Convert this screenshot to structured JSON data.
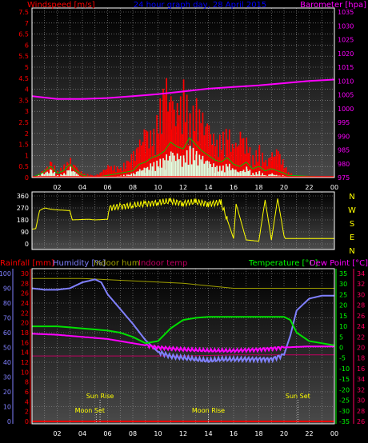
{
  "header": {
    "windspeed": "Windspeed [m/s]",
    "title": "24 hour graph day, 28 April 2015",
    "barometer": "Barometer [hpa]"
  },
  "bottom_header": {
    "rainfall": "Rainfall [mm]",
    "humidity": "Humidity [%]",
    "indoor_hum": "Indoor hum",
    "indoor_temp": "Indoor temp",
    "temperature": "Temperature [°C]",
    "dew_point": "Dew Point [°C]"
  },
  "direction_labels": [
    "N",
    "W",
    "S",
    "E",
    "N"
  ],
  "annotations": {
    "sun_rise": "Sun Rise",
    "moon_set": "Moon Set",
    "moon_rise": "Moon Rise",
    "sun_set": "Sun Set"
  },
  "colors": {
    "wind_gust": "#ff0000",
    "wind_avg": "#00c000",
    "wind_bars": "#e0ffe0",
    "barometer": "#ff00ff",
    "direction": "#ffff00",
    "humidity": "#8080ff",
    "temperature": "#00e000",
    "dew_point": "#ff00ff",
    "indoor_temp": "#c00060",
    "indoor_hum": "#a0a000",
    "rain": "#ff0000",
    "left_axis_top": "#ff0000",
    "left_axis_hum": "#8080ff",
    "right_axis_temp": "#00ff00",
    "right_axis_dew": "#ff0060"
  },
  "chart_data": [
    {
      "type": "bar",
      "name": "wind_barometer",
      "x_ticks": [
        "02",
        "04",
        "06",
        "08",
        "10",
        "12",
        "14",
        "16",
        "18",
        "20",
        "22",
        "00"
      ],
      "wind_ticks": [
        "0",
        "0.5",
        "1",
        "1.5",
        "2",
        "2.5",
        "3",
        "3.5",
        "4",
        "4.5",
        "5",
        "5.5",
        "6",
        "6.5",
        "7",
        "7.5"
      ],
      "wind_ylim": [
        0,
        7.5
      ],
      "baro_ticks": [
        "975",
        "980",
        "985",
        "990",
        "995",
        "1000",
        "1005",
        "1010",
        "1015",
        "1020",
        "1025",
        "1030",
        "1035"
      ],
      "baro_ylim": [
        975,
        1035
      ],
      "baro_series": {
        "x": [
          0,
          2,
          4,
          6,
          8,
          10,
          12,
          14,
          16,
          18,
          20,
          22,
          24
        ],
        "y": [
          1004.5,
          1003.5,
          1003.5,
          1003.8,
          1004.5,
          1005.2,
          1006.2,
          1007.2,
          1007.8,
          1008.4,
          1009.2,
          1010.0,
          1010.5
        ]
      },
      "gust_envelope": {
        "x": [
          0,
          0.8,
          1.5,
          2.0,
          2.5,
          3.0,
          3.5,
          4.0,
          5.0,
          5.5,
          6.0,
          7.0,
          8.0,
          8.5,
          9.0,
          9.5,
          10.0,
          10.5,
          11.0,
          11.5,
          12.0,
          12.5,
          13.0,
          13.5,
          14.0,
          14.5,
          15.0,
          15.5,
          16.0,
          16.5,
          17.0,
          17.5,
          18.0,
          18.5,
          19.0,
          19.5,
          20.0,
          20.3,
          21,
          24
        ],
        "y": [
          0,
          0.3,
          0.8,
          0.3,
          0.6,
          0.9,
          0.5,
          0.2,
          0.1,
          0.3,
          0.6,
          0.5,
          1.2,
          1.8,
          2.5,
          2.0,
          3.2,
          4.8,
          4.0,
          3.4,
          4.5,
          3.0,
          3.6,
          3.0,
          2.6,
          1.8,
          2.0,
          2.4,
          1.5,
          2.2,
          1.8,
          1.0,
          1.5,
          0.8,
          1.2,
          1.4,
          0.6,
          0.3,
          0,
          0
        ]
      },
      "avg_series": {
        "x": [
          0,
          0.8,
          1.5,
          2.0,
          2.5,
          3.0,
          3.5,
          4.0,
          5.0,
          6.0,
          7.0,
          8.0,
          8.5,
          9.0,
          9.5,
          10.0,
          10.5,
          11.0,
          11.5,
          12.0,
          12.5,
          13.0,
          13.5,
          14.0,
          14.5,
          15.0,
          15.5,
          16.0,
          16.5,
          17.0,
          17.5,
          18.0,
          18.5,
          19.0,
          19.5,
          20.0,
          20.3,
          24
        ],
        "y": [
          0,
          0.2,
          0.5,
          0.2,
          0.3,
          0.6,
          0.3,
          0.1,
          0,
          0.1,
          0.2,
          0.3,
          0.6,
          0.7,
          0.9,
          1.0,
          1.2,
          1.6,
          1.4,
          1.3,
          1.8,
          1.5,
          1.2,
          1.0,
          0.8,
          0.7,
          0.9,
          0.6,
          0.5,
          0.7,
          0.4,
          0.5,
          0.3,
          0.4,
          0.3,
          0.2,
          0.1,
          0
        ]
      },
      "avg_bars": {
        "x": [
          0,
          0.8,
          1.5,
          2.0,
          2.5,
          3.0,
          3.5,
          4.0,
          5.0,
          6.0,
          7.0,
          8.0,
          8.5,
          9.0,
          9.5,
          10.0,
          10.5,
          11.0,
          11.5,
          12.0,
          12.5,
          13.0,
          13.5,
          14.0,
          14.5,
          15.0,
          15.5,
          16.0,
          16.5,
          17.0,
          17.5,
          18.0,
          18.5,
          19.0,
          19.5,
          20.0,
          20.3,
          24
        ],
        "y": [
          0,
          0.2,
          0.4,
          0.1,
          0.2,
          0.5,
          0.2,
          0,
          0,
          0,
          0.1,
          0.2,
          0.4,
          0.5,
          0.7,
          0.8,
          1.0,
          1.3,
          1.1,
          1.0,
          1.5,
          1.2,
          1.0,
          0.8,
          0.6,
          0.5,
          0.7,
          0.4,
          0.3,
          0.5,
          0.2,
          0.3,
          0.1,
          0.2,
          0.1,
          0.1,
          0,
          0
        ]
      }
    },
    {
      "type": "line",
      "name": "wind_direction",
      "x_ticks": [
        "02",
        "04",
        "06",
        "08",
        "10",
        "12",
        "14",
        "16",
        "18",
        "20",
        "22",
        "00"
      ],
      "y_ticks": [
        "0",
        "90",
        "180",
        "270",
        "360"
      ],
      "ylim": [
        0,
        360
      ],
      "x": [
        0,
        0.3,
        0.6,
        1.0,
        1.5,
        2.0,
        3.0,
        3.2,
        4.5,
        5.0,
        6.0,
        6.1,
        7.0,
        8.0,
        9.0,
        10.0,
        11.0,
        12.0,
        13.0,
        14.0,
        15.0,
        15.5,
        16.0,
        16.2,
        17.0,
        18.0,
        18.5,
        19.0,
        19.5,
        20.0,
        20.1,
        22.0,
        24.0
      ],
      "y": [
        110,
        115,
        250,
        270,
        260,
        255,
        250,
        180,
        185,
        180,
        185,
        270,
        280,
        290,
        300,
        310,
        320,
        305,
        315,
        300,
        310,
        180,
        40,
        300,
        30,
        20,
        330,
        30,
        340,
        60,
        40,
        40,
        40
      ]
    },
    {
      "type": "line",
      "name": "temperature_humidity",
      "x_ticks": [
        "02",
        "04",
        "06",
        "08",
        "10",
        "12",
        "14",
        "16",
        "18",
        "20",
        "22",
        "00"
      ],
      "hum_ticks": [
        "0",
        "10",
        "20",
        "30",
        "40",
        "50",
        "60",
        "70",
        "80",
        "90",
        "100"
      ],
      "hum_ylim": [
        0,
        100
      ],
      "rain_ticks": [
        "0",
        "2",
        "4",
        "6",
        "8",
        "10",
        "12",
        "14",
        "16",
        "18",
        "20",
        "22",
        "24",
        "26",
        "28",
        "30"
      ],
      "rain_ylim": [
        0,
        30
      ],
      "temp_ticks": [
        "-35",
        "-30",
        "-25",
        "-20",
        "-15",
        "-10",
        "-5",
        "0",
        "5",
        "10",
        "15",
        "20",
        "25",
        "30",
        "35"
      ],
      "temp_ylim": [
        -35,
        35
      ],
      "dew_ticks": [
        "16",
        "18",
        "20",
        "22",
        "24",
        "26",
        "28",
        "30",
        "32",
        "34"
      ],
      "humidity": {
        "x": [
          0,
          1,
          2,
          3,
          4,
          5,
          5.5,
          6,
          7,
          8,
          9,
          10,
          11,
          12,
          13,
          14,
          15,
          16,
          17,
          18,
          19,
          20,
          20.5,
          21,
          22,
          23,
          24
        ],
        "y": [
          90,
          89,
          89,
          90,
          94,
          96,
          94,
          86,
          76,
          66,
          55,
          47,
          44,
          43,
          42,
          41,
          42,
          42,
          42,
          42,
          42,
          45,
          58,
          75,
          83,
          85,
          85
        ]
      },
      "temperature": {
        "x": [
          0,
          1,
          2,
          3,
          4,
          5,
          6,
          7,
          8,
          9,
          10,
          11,
          12,
          13,
          14,
          15,
          16,
          17,
          18,
          19,
          20,
          20.5,
          21,
          22,
          23,
          24
        ],
        "y": [
          10,
          10,
          10,
          9.5,
          9,
          8.5,
          8,
          7,
          5,
          2,
          3,
          9,
          13,
          14,
          14.5,
          14.5,
          14.5,
          14.5,
          14.5,
          14.5,
          14.5,
          13,
          7,
          3,
          2,
          1
        ]
      },
      "dew_point": {
        "x": [
          0,
          2,
          4,
          6,
          8,
          10,
          12,
          14,
          16,
          18,
          20,
          22,
          24
        ],
        "y": [
          6.5,
          6,
          5,
          4,
          2,
          0,
          -1,
          -1.5,
          -1.5,
          -1,
          0,
          0.5,
          0.5
        ]
      },
      "indoor_temp": {
        "x": [
          0,
          4,
          8,
          12,
          16,
          20,
          24
        ],
        "y": [
          -4,
          -4,
          -4,
          -4,
          -3.5,
          -3.5,
          -3.5
        ]
      },
      "indoor_hum": {
        "x": [
          0,
          4,
          8,
          12,
          16,
          20,
          24
        ],
        "y": [
          29,
          29,
          28.5,
          28,
          27,
          27,
          27
        ]
      },
      "rainfall": {
        "x": [
          0,
          24
        ],
        "y": [
          0,
          0
        ]
      },
      "events": [
        {
          "key": "moon_set",
          "x": 5.1,
          "text": "Moon Set"
        },
        {
          "key": "sun_rise",
          "x": 5.4,
          "text": "Sun Rise"
        },
        {
          "key": "moon_rise",
          "x": 14.0,
          "text": "Moon Rise"
        },
        {
          "key": "sun_set",
          "x": 21.1,
          "text": "Sun Set"
        }
      ]
    }
  ]
}
